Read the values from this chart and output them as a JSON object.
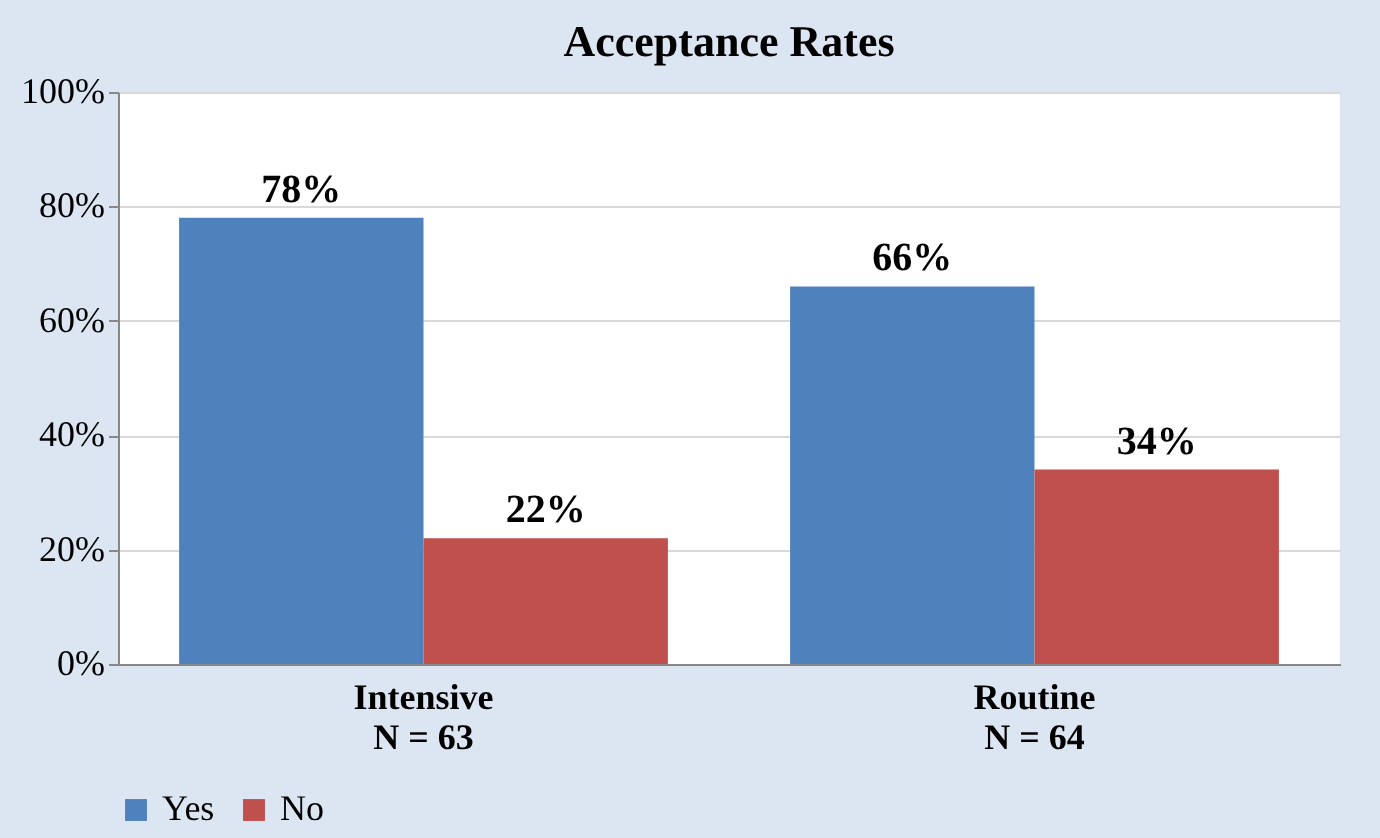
{
  "chart_data": {
    "type": "bar",
    "title": "Acceptance Rates",
    "categories": [
      "Intensive\nN = 63",
      "Routine\nN = 64"
    ],
    "series": [
      {
        "name": "Yes",
        "color": "#4f81bd",
        "values": [
          78,
          66
        ],
        "value_labels": [
          "78%",
          "66%"
        ]
      },
      {
        "name": "No",
        "color": "#c0504d",
        "values": [
          22,
          34
        ],
        "value_labels": [
          "22%",
          "34%"
        ]
      }
    ],
    "ylim": [
      0,
      100
    ],
    "yticks": [
      {
        "value": 0,
        "label": "0%"
      },
      {
        "value": 20,
        "label": "20%"
      },
      {
        "value": 40,
        "label": "40%"
      },
      {
        "value": 60,
        "label": "60%"
      },
      {
        "value": 80,
        "label": "80%"
      },
      {
        "value": 100,
        "label": "100%"
      }
    ],
    "grid": "y",
    "legend": "bottom"
  }
}
